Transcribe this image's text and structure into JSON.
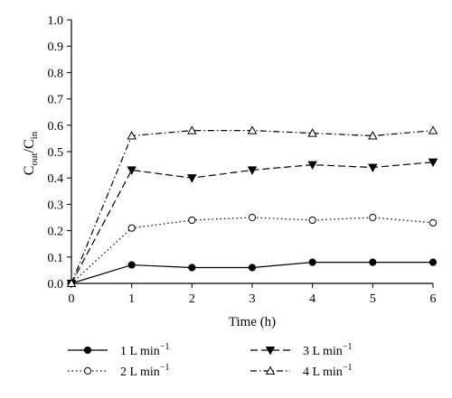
{
  "chart_data": {
    "type": "line",
    "title": "",
    "xlabel": "Time (h)",
    "ylabel": {
      "base": "C",
      "sub1": "out",
      "slash": "/",
      "base2": "C",
      "sub2": "in"
    },
    "xlim": [
      0,
      6
    ],
    "ylim": [
      0.0,
      1.0
    ],
    "xticks": [
      "0",
      "1",
      "2",
      "3",
      "4",
      "5",
      "6"
    ],
    "yticks": [
      "0.0",
      "0.1",
      "0.2",
      "0.3",
      "0.4",
      "0.5",
      "0.6",
      "0.7",
      "0.8",
      "0.9",
      "1.0"
    ],
    "grid": false,
    "legend_position": "bottom",
    "x": [
      0,
      1,
      2,
      3,
      4,
      5,
      6
    ],
    "series": [
      {
        "name": "1 L min",
        "name_sup": "−1",
        "values": [
          0.0,
          0.07,
          0.06,
          0.06,
          0.08,
          0.08,
          0.08
        ],
        "marker": "filled-circle",
        "line": "solid"
      },
      {
        "name": "2 L min",
        "name_sup": "−1",
        "values": [
          0.0,
          0.21,
          0.24,
          0.25,
          0.24,
          0.25,
          0.23
        ],
        "marker": "open-circle",
        "line": "dotted"
      },
      {
        "name": "3 L min",
        "name_sup": "−1",
        "values": [
          0.0,
          0.43,
          0.4,
          0.43,
          0.45,
          0.44,
          0.46
        ],
        "marker": "filled-triangle-down",
        "line": "dashed"
      },
      {
        "name": "4 L min",
        "name_sup": "−1",
        "values": [
          0.0,
          0.56,
          0.58,
          0.58,
          0.57,
          0.56,
          0.58
        ],
        "marker": "open-triangle-up",
        "line": "dash-dot"
      }
    ]
  }
}
